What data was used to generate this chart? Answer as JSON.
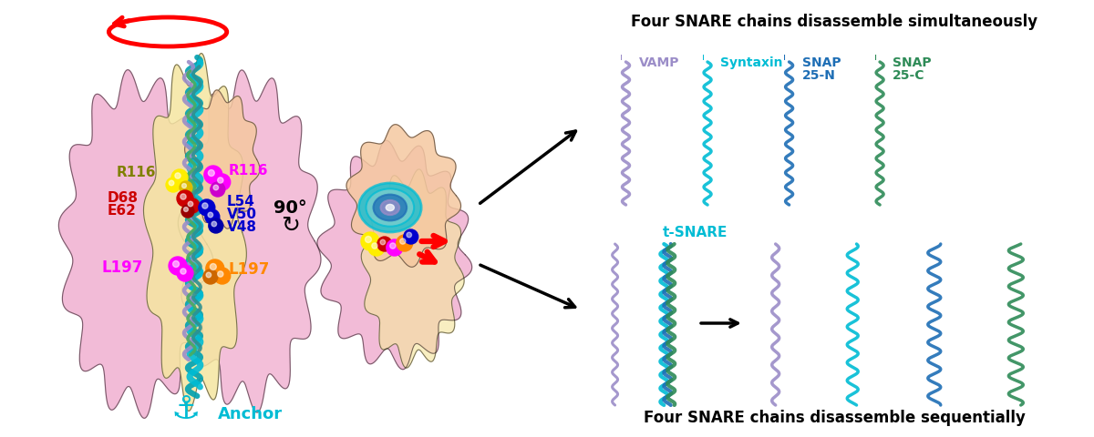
{
  "title_top": "Four SNARE chains disassemble simultaneously",
  "title_bottom": "Four SNARE chains disassemble sequentially",
  "chain_labels_top": [
    "VAMP",
    "Syntaxin",
    "SNAP\n25-N",
    "SNAP\n25-C"
  ],
  "chain_colors": [
    "#9b8dc8",
    "#00bcd4",
    "#1e6eb5",
    "#2e8b57"
  ],
  "t_snare_label": "t-SNARE",
  "t_snare_color": "#00bcd4",
  "label_color_vamp": "#9b8dc8",
  "label_color_syntaxin": "#00bcd4",
  "label_color_snap25n": "#1e6eb5",
  "label_color_snap25c": "#2e8b57",
  "annotation_labels": {
    "R116_left": "R116",
    "R116_right": "R116",
    "D68": "D68",
    "E62": "E62",
    "L54": "L54",
    "V50": "V50",
    "V48": "V48",
    "L197_left": "L197",
    "L197_right": "L197",
    "Anchor": "Anchor",
    "ninety_deg": "90°"
  },
  "annotation_colors": {
    "R116_left": "#808000",
    "R116_right": "#ff00ff",
    "D68": "#cc0000",
    "E62": "#cc0000",
    "L54": "#0000cc",
    "V50": "#0000cc",
    "V48": "#0000cc",
    "L197_left": "#ff00ff",
    "L197_right": "#ff8800",
    "Anchor": "#00bcd4"
  },
  "background_color": "#ffffff",
  "left_panel_bg_pink": "#f0b0d0",
  "left_panel_bg_yellow": "#f5e6a0",
  "left_panel_bg_peach": "#f5c8a0",
  "helix_vamp_color": "#9b8dc8",
  "helix_syntaxin_color": "#00bcd4",
  "helix_snap25n_color": "#1e6eb5",
  "helix_snap25c_color": "#2e8b57",
  "sphere_colors": {
    "yellow": "#ffee00",
    "magenta": "#ff00ff",
    "red": "#cc0000",
    "blue": "#0000cc",
    "orange": "#ff8800"
  },
  "figsize": [
    12.0,
    4.8
  ],
  "dpi": 100
}
